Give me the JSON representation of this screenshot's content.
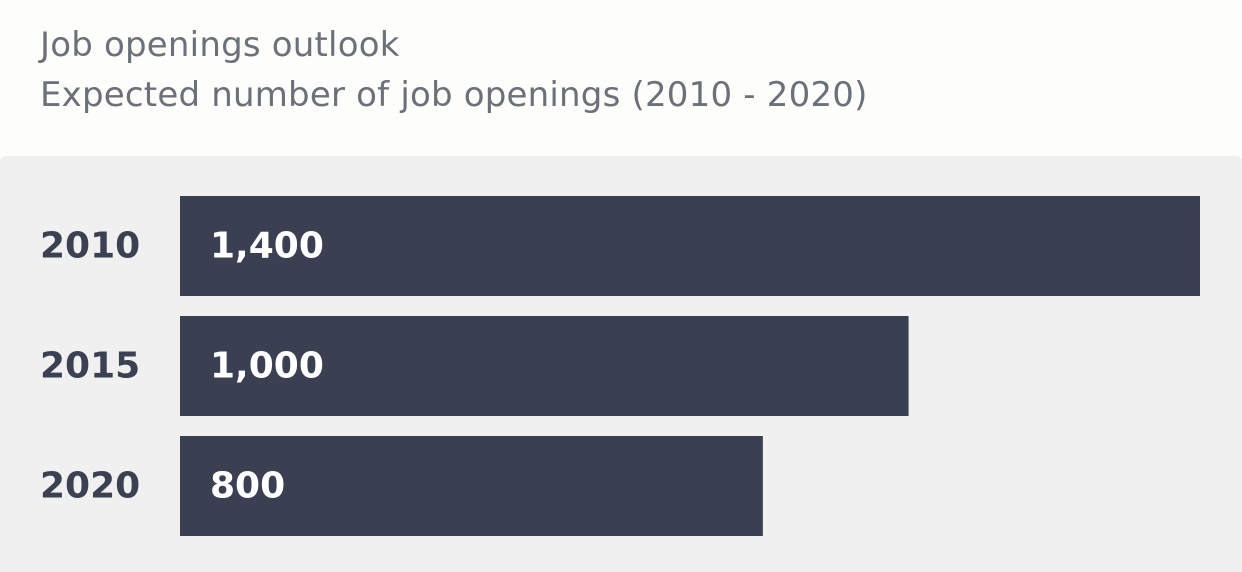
{
  "title": "Job openings outlook",
  "subtitle": "Expected number of job openings (2010 - 2020)",
  "chart_data": {
    "type": "bar",
    "orientation": "horizontal",
    "categories": [
      "2010",
      "2015",
      "2020"
    ],
    "values": [
      1400,
      1000,
      800
    ],
    "value_labels": [
      "1,400",
      "1,000",
      "800"
    ],
    "xlim": [
      0,
      1400
    ],
    "grid": false,
    "legend": "none",
    "bar_color": "#3a4051",
    "label_color": "#ffffff",
    "background_color": "#eff0ef"
  }
}
